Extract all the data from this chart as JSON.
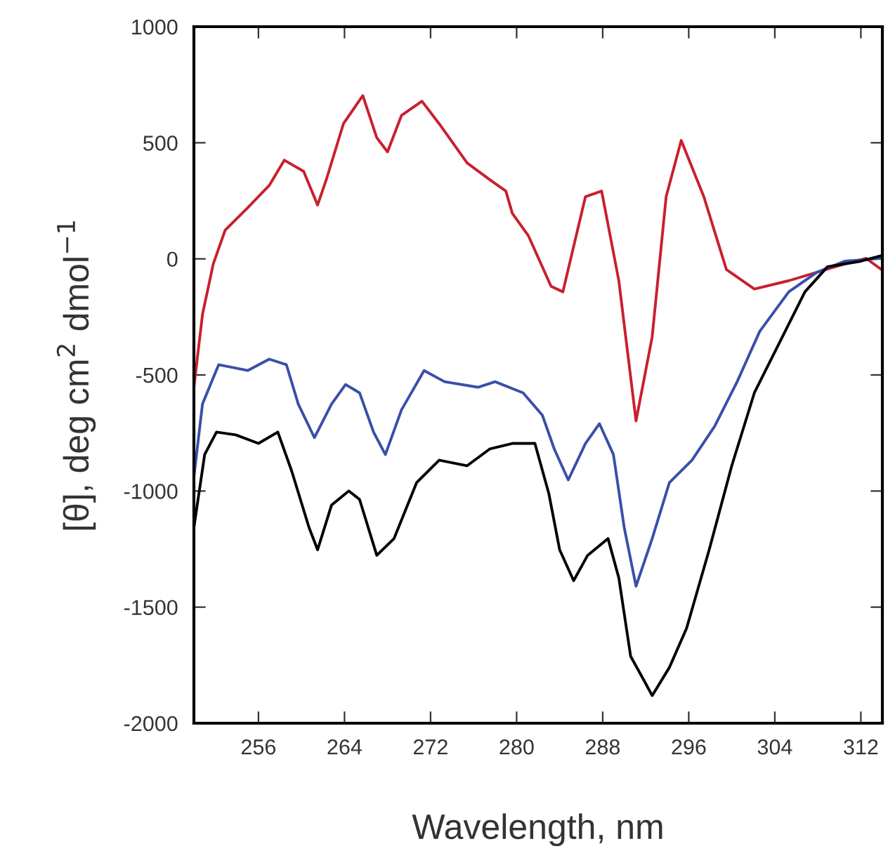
{
  "chart_data": {
    "type": "line",
    "xlabel": "Wavelength, nm",
    "ylabel": "[θ], deg cm$^{2}$ dmol$^{−1}$",
    "xlim": [
      250,
      314
    ],
    "xticks": [
      256,
      264,
      272,
      280,
      288,
      296,
      304,
      312
    ],
    "ylim": [
      -2000,
      1000
    ],
    "yticks": [
      -2000,
      -1500,
      -1000,
      -500,
      0,
      500,
      1000
    ],
    "grid": false,
    "legend": false,
    "marker": "none",
    "line_style": "solid",
    "series": [
      {
        "color": "#c8202e",
        "x": [
          250.0,
          250.8,
          251.8,
          252.9,
          255.0,
          257.0,
          258.4,
          260.2,
          261.5,
          262.3,
          263.9,
          265.7,
          267.0,
          268.0,
          269.3,
          271.2,
          272.8,
          275.4,
          277.5,
          279.0,
          279.6,
          281.1,
          283.2,
          284.3,
          286.4,
          287.9,
          289.5,
          291.1,
          292.6,
          293.9,
          295.3,
          297.4,
          299.5,
          302.1,
          305.3,
          307.9,
          310.5,
          312.5,
          313.9
        ],
        "values": [
          -553,
          -239,
          -22,
          123,
          220,
          316,
          425,
          377,
          232,
          340,
          582,
          703,
          522,
          461,
          618,
          679,
          582,
          413,
          341,
          292,
          196,
          99,
          -118,
          -142,
          268,
          292,
          -94,
          -698,
          -336,
          268,
          510,
          268,
          -46,
          -130,
          -94,
          -58,
          -22,
          2,
          -46
        ]
      },
      {
        "color": "#3a4fa8",
        "x": [
          250.0,
          250.8,
          252.3,
          255.0,
          257.0,
          258.6,
          259.7,
          261.2,
          262.8,
          264.1,
          265.4,
          266.7,
          267.8,
          269.3,
          271.4,
          273.3,
          276.4,
          278.0,
          280.6,
          282.4,
          283.5,
          284.8,
          286.4,
          287.7,
          289.0,
          290.0,
          291.1,
          292.6,
          294.2,
          296.3,
          298.4,
          300.5,
          302.6,
          305.3,
          307.9,
          310.5,
          313.9
        ],
        "values": [
          -939,
          -625,
          -456,
          -481,
          -432,
          -456,
          -625,
          -770,
          -625,
          -541,
          -577,
          -746,
          -843,
          -650,
          -481,
          -529,
          -553,
          -529,
          -577,
          -674,
          -819,
          -952,
          -795,
          -710,
          -843,
          -1157,
          -1410,
          -1205,
          -964,
          -867,
          -722,
          -529,
          -312,
          -142,
          -58,
          -10,
          2
        ]
      },
      {
        "color": "#000000",
        "x": [
          250.0,
          251.0,
          252.1,
          253.9,
          256.0,
          257.8,
          259.1,
          260.7,
          261.5,
          262.8,
          264.4,
          265.4,
          267.0,
          268.6,
          270.7,
          272.8,
          275.4,
          277.5,
          279.6,
          281.7,
          283.0,
          284.0,
          285.3,
          286.6,
          288.5,
          289.5,
          290.6,
          291.9,
          292.6,
          294.2,
          295.8,
          297.9,
          300.0,
          302.1,
          304.7,
          306.8,
          308.9,
          312.0,
          313.9
        ],
        "values": [
          -1157,
          -843,
          -746,
          -758,
          -795,
          -746,
          -915,
          -1157,
          -1253,
          -1060,
          -1000,
          -1036,
          -1277,
          -1205,
          -964,
          -867,
          -891,
          -819,
          -795,
          -795,
          -1012,
          -1253,
          -1386,
          -1277,
          -1205,
          -1374,
          -1712,
          -1821,
          -1881,
          -1760,
          -1591,
          -1253,
          -891,
          -577,
          -336,
          -142,
          -34,
          -10,
          14
        ]
      }
    ]
  }
}
